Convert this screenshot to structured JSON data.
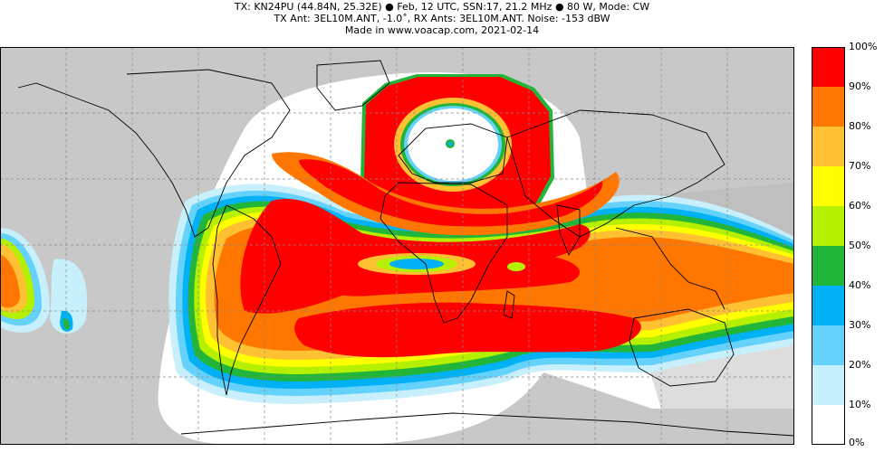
{
  "header": {
    "line1": "TX: KN24PU (44.84N, 25.32E) ● Feb, 12 UTC, SSN:17, 21.2 MHz ● 80 W, Mode: CW",
    "line2": "TX Ant: 3EL10M.ANT, -1.0˚, RX Ants: 3EL10M.ANT. Noise: -153 dBW",
    "line3": "Made in www.voacap.com, 2021-02-14"
  },
  "colorbar": {
    "labels": [
      "100%",
      "90%",
      "80%",
      "70%",
      "60%",
      "50%",
      "40%",
      "30%",
      "20%",
      "10%",
      "0%"
    ],
    "bands": [
      {
        "from": 90,
        "to": 100,
        "color": "#ff0000"
      },
      {
        "from": 80,
        "to": 90,
        "color": "#ff7700"
      },
      {
        "from": 70,
        "to": 80,
        "color": "#ffc032"
      },
      {
        "from": 60,
        "to": 70,
        "color": "#ffff00"
      },
      {
        "from": 50,
        "to": 60,
        "color": "#b4f000"
      },
      {
        "from": 40,
        "to": 50,
        "color": "#21b53a"
      },
      {
        "from": 30,
        "to": 40,
        "color": "#00b2f5"
      },
      {
        "from": 20,
        "to": 30,
        "color": "#64d2fa"
      },
      {
        "from": 10,
        "to": 20,
        "color": "#c8f0fc"
      },
      {
        "from": 0,
        "to": 10,
        "color": "#ffffff"
      }
    ]
  },
  "map": {
    "night_shade_color": "#c8c8c8",
    "land_outline_color": "#000000",
    "grid_line_color": "#888888",
    "transmitter": {
      "lat": 44.84,
      "lon": 25.32
    }
  }
}
